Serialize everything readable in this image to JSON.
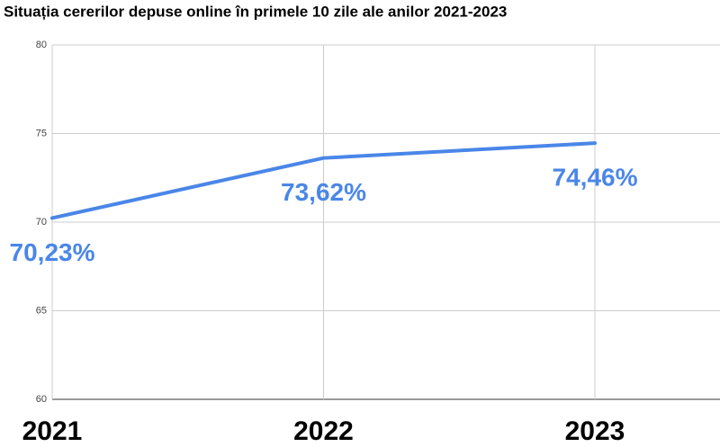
{
  "chart_data": {
    "type": "line",
    "title": "Situația cererilor depuse online în primele 10 zile ale anilor 2021-2023",
    "categories": [
      "2021",
      "2022",
      "2023"
    ],
    "series": [
      {
        "color": "#4a86e8",
        "values": [
          70.23,
          73.62,
          74.46
        ],
        "value_labels": [
          "70,23%",
          "73,62%",
          "74,46%"
        ]
      }
    ],
    "ylim": [
      60,
      80
    ],
    "yticks": [
      60,
      65,
      70,
      75,
      80
    ],
    "grid": true
  }
}
